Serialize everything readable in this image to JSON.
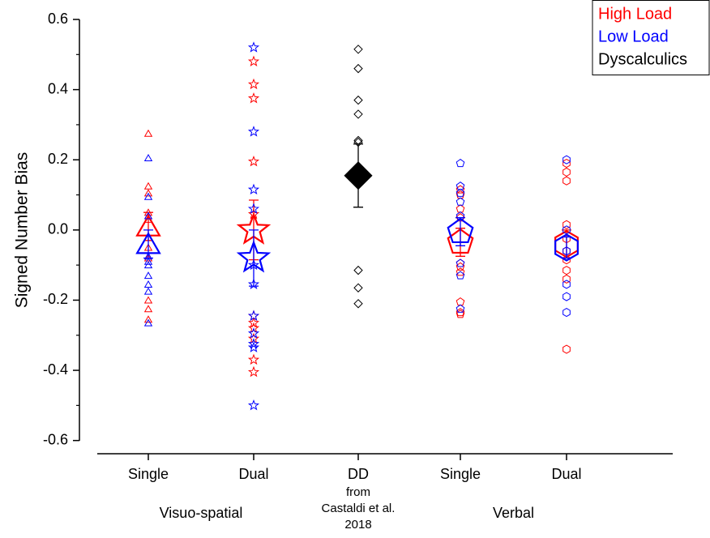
{
  "chart_data": {
    "type": "category-scatter",
    "y_label": "Signed Number Bias",
    "categories": [
      "Single",
      "Dual",
      "DD",
      "Single",
      "Dual"
    ],
    "category_note": [
      "from",
      "Castaldi et al.",
      "2018"
    ],
    "groups": [
      {
        "name": "Visuo-spatial",
        "categories": [
          0,
          1
        ]
      },
      {
        "name": "Verbal",
        "categories": [
          3,
          4
        ]
      }
    ],
    "markers": [
      "triangle",
      "star",
      "diamond",
      "pentagon",
      "hexagon"
    ],
    "ylim": [
      -0.64,
      0.6
    ],
    "yticks": [
      -0.6,
      -0.4,
      -0.2,
      {
        "value": 0,
        "label": "0.0"
      },
      0.2,
      0.4,
      0.6
    ],
    "yminor_ticks": [
      -0.5,
      -0.3,
      -0.1,
      0.1,
      0.3,
      0.5
    ],
    "legend": "top-right",
    "series": [
      {
        "name": "High Load",
        "color": "#ff0000",
        "values": [
          [
            0.275,
            0.125,
            0.105,
            0.05,
            0.04,
            0.03,
            -0.05,
            -0.08,
            -0.2,
            -0.225,
            -0.255
          ],
          [
            0.48,
            0.415,
            0.375,
            0.195,
            0.045,
            -0.245,
            -0.265,
            -0.28,
            -0.31,
            -0.37,
            -0.405
          ],
          null,
          [
            0.115,
            0.1,
            0.06,
            0.035,
            -0.095,
            -0.105,
            -0.12,
            -0.205,
            -0.235,
            -0.24
          ],
          [
            0.19,
            0.165,
            0.14,
            0.015,
            -0.025,
            -0.06,
            -0.085,
            -0.115,
            -0.14,
            -0.34
          ]
        ],
        "means": [
          0.01,
          0.0,
          null,
          -0.035,
          -0.04
        ],
        "errors": [
          0.04,
          0.085,
          null,
          0.04,
          0.04
        ]
      },
      {
        "name": "Low Load",
        "color": "#0000ff",
        "values": [
          [
            0.205,
            0.095,
            0.04,
            -0.075,
            -0.09,
            -0.1,
            -0.13,
            -0.155,
            -0.175,
            -0.265
          ],
          [
            0.52,
            0.28,
            0.115,
            0.06,
            -0.1,
            -0.155,
            -0.245,
            -0.295,
            -0.325,
            -0.335,
            -0.5
          ],
          null,
          [
            0.19,
            0.125,
            0.105,
            0.08,
            0.04,
            -0.095,
            -0.13,
            -0.225
          ],
          [
            0.2,
            0.0,
            -0.06,
            -0.155,
            -0.19,
            -0.235
          ]
        ],
        "means": [
          -0.04,
          -0.08,
          null,
          -0.005,
          -0.05
        ],
        "errors": [
          0.04,
          0.08,
          null,
          0.04,
          0.03
        ]
      },
      {
        "name": "Dyscalculics",
        "color": "#000000",
        "values": [
          null,
          null,
          [
            0.515,
            0.46,
            0.37,
            0.33,
            0.255,
            0.25,
            -0.115,
            -0.165,
            -0.21
          ],
          null,
          null
        ],
        "means": [
          null,
          null,
          0.155,
          null,
          null
        ],
        "errors": [
          null,
          null,
          0.09,
          null,
          null
        ],
        "filled_mean": true
      }
    ]
  }
}
